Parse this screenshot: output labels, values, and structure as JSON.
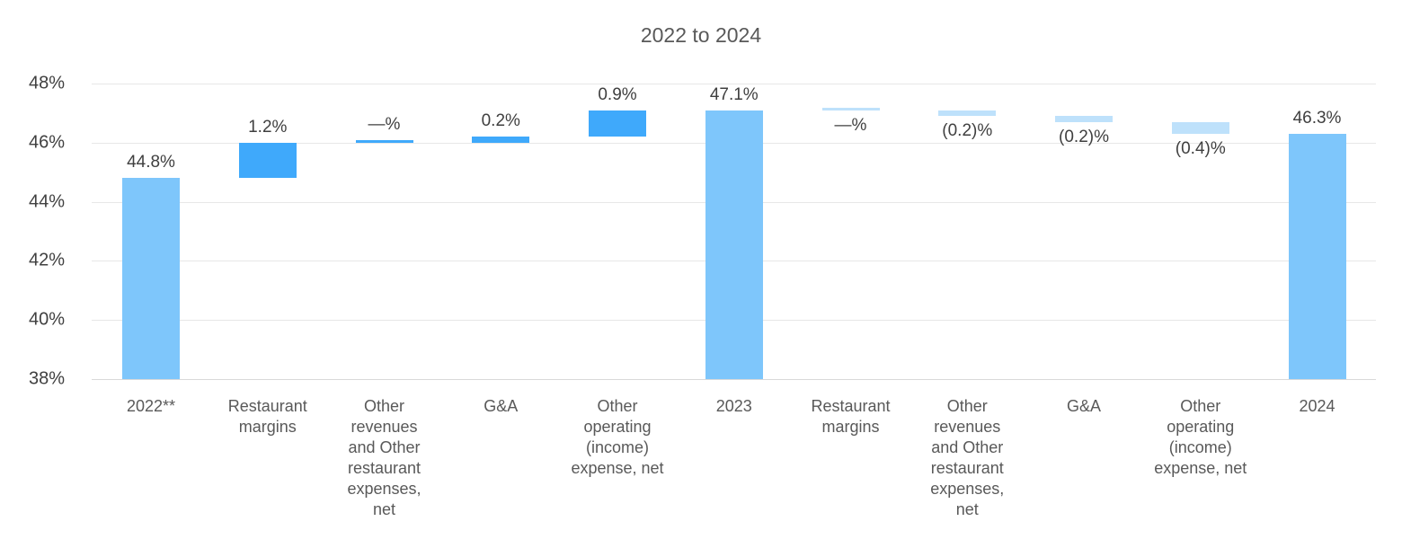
{
  "title": "2022 to 2024",
  "chart_data": {
    "type": "bar",
    "subtype": "waterfall",
    "title": "2022 to 2024",
    "xlabel": "",
    "ylabel": "",
    "ylim": [
      38,
      48
    ],
    "grid": true,
    "legend": "none",
    "yticks": [
      {
        "value": 48,
        "label": "48%"
      },
      {
        "value": 46,
        "label": "46%"
      },
      {
        "value": 44,
        "label": "44%"
      },
      {
        "value": 42,
        "label": "42%"
      },
      {
        "value": 40,
        "label": "40%"
      },
      {
        "value": 38,
        "label": "38%"
      }
    ],
    "colors": {
      "total": "#7EC6FB",
      "increase": "#3FA9FB",
      "decrease": "#BEE1FB",
      "gridline": "#E7E7E7",
      "axis_line": "#D9D9D9",
      "title_text": "#595959",
      "tick_text": "#404040",
      "category_text": "#595959",
      "value_text": "#3F3F3F"
    },
    "bars": [
      {
        "category": "2022**",
        "label": "44.8%",
        "start": 38.0,
        "end": 44.8,
        "role": "total",
        "label_pos": "above"
      },
      {
        "category": "Restaurant margins",
        "label": "1.2%",
        "start": 44.8,
        "end": 46.0,
        "role": "increase",
        "label_pos": "above"
      },
      {
        "category": "Other revenues and Other restaurant expenses, net",
        "label": "—%",
        "start": 46.0,
        "end": 46.0,
        "role": "zero-increase",
        "label_pos": "above"
      },
      {
        "category": "G&A",
        "label": "0.2%",
        "start": 46.0,
        "end": 46.2,
        "role": "increase",
        "label_pos": "above"
      },
      {
        "category": "Other operating (income) expense, net",
        "label": "0.9%",
        "start": 46.2,
        "end": 47.1,
        "role": "increase",
        "label_pos": "above"
      },
      {
        "category": "2023",
        "label": "47.1%",
        "start": 38.0,
        "end": 47.1,
        "role": "total",
        "label_pos": "above"
      },
      {
        "category": "Restaurant margins",
        "label": "—%",
        "start": 47.1,
        "end": 47.1,
        "role": "zero-decrease",
        "label_pos": "below"
      },
      {
        "category": "Other revenues and Other restaurant expenses, net",
        "label": "(0.2)%",
        "start": 47.1,
        "end": 46.9,
        "role": "decrease",
        "label_pos": "below"
      },
      {
        "category": "G&A",
        "label": "(0.2)%",
        "start": 46.9,
        "end": 46.7,
        "role": "decrease",
        "label_pos": "below"
      },
      {
        "category": "Other operating (income) expense, net",
        "label": "(0.4)%",
        "start": 46.7,
        "end": 46.3,
        "role": "decrease",
        "label_pos": "below"
      },
      {
        "category": "2024",
        "label": "46.3%",
        "start": 38.0,
        "end": 46.3,
        "role": "total",
        "label_pos": "above"
      }
    ]
  }
}
